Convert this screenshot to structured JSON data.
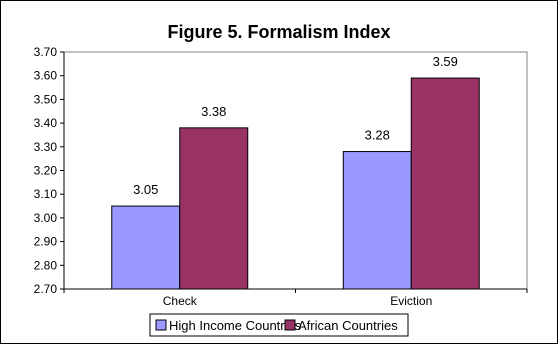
{
  "chart_data": {
    "type": "bar",
    "title": "Figure 5. Formalism Index",
    "xlabel": "",
    "ylabel": "",
    "categories": [
      "Check",
      "Eviction"
    ],
    "series": [
      {
        "name": "High Income Countries",
        "values": [
          3.05,
          3.28
        ],
        "labels": [
          "3.05",
          "3.28"
        ],
        "color": "#9999FF"
      },
      {
        "name": "African Countries",
        "values": [
          3.38,
          3.59
        ],
        "labels": [
          "3.38",
          "3.59"
        ],
        "color": "#993366"
      }
    ],
    "ylim": [
      2.7,
      3.7
    ],
    "yticks": [
      "2.70",
      "2.80",
      "2.90",
      "3.00",
      "3.10",
      "3.20",
      "3.30",
      "3.40",
      "3.50",
      "3.60",
      "3.70"
    ],
    "grid": false,
    "legend": "bottom"
  }
}
